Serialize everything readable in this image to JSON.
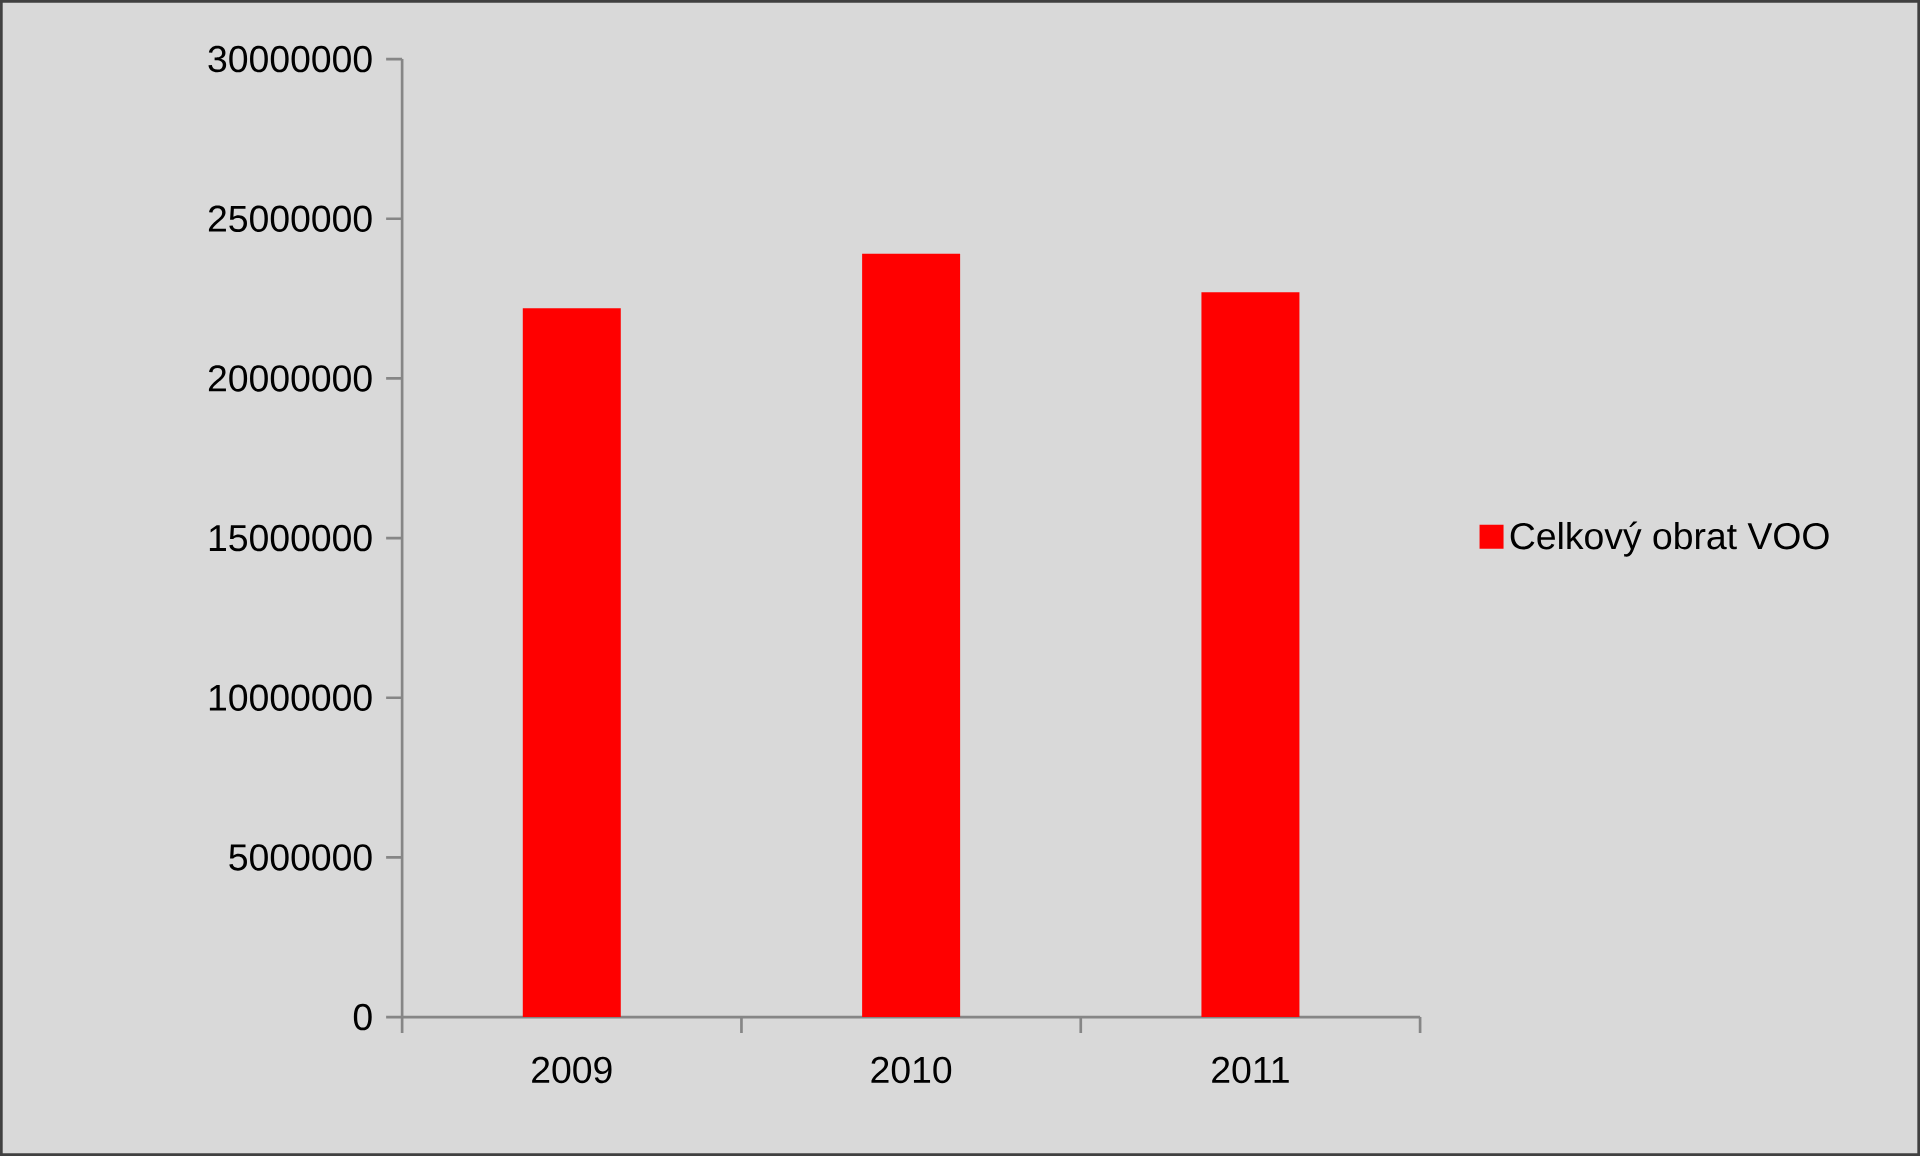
{
  "chart_data": {
    "type": "bar",
    "categories": [
      "2009",
      "2010",
      "2011"
    ],
    "series": [
      {
        "name": "Celkový obrat  VOO",
        "color": "#ff0000",
        "values": [
          22200000,
          23900000,
          22700000
        ]
      }
    ],
    "ylim": [
      0,
      30000000
    ],
    "yticks": [
      0,
      5000000,
      10000000,
      15000000,
      20000000,
      25000000,
      30000000
    ],
    "grid": false,
    "legend": "right"
  }
}
